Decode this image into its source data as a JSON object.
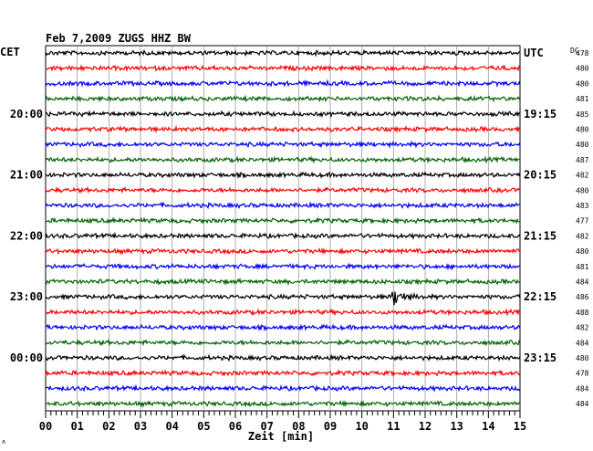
{
  "chart_data": {
    "type": "line",
    "title": "Feb 7,2009   ZUGS HHZ BW",
    "left_timezone": "CET",
    "right_timezone": "UTC",
    "dc_label": "DC",
    "xlabel": "Zeit [min]",
    "x_ticks": [
      "00",
      "01",
      "02",
      "03",
      "04",
      "05",
      "06",
      "07",
      "08",
      "09",
      "10",
      "11",
      "12",
      "13",
      "14",
      "15"
    ],
    "xlim": [
      0,
      15
    ],
    "grid": true,
    "trace_colors": [
      "#000000",
      "#ff0000",
      "#0000ff",
      "#006400"
    ],
    "left_time_labels": [
      {
        "row": 4,
        "text": "20:00"
      },
      {
        "row": 8,
        "text": "21:00"
      },
      {
        "row": 12,
        "text": "22:00"
      },
      {
        "row": 16,
        "text": "23:00"
      },
      {
        "row": 20,
        "text": "00:00"
      }
    ],
    "right_time_labels": [
      {
        "row": 0,
        "text": "UTC"
      },
      {
        "row": 4,
        "text": "19:15"
      },
      {
        "row": 8,
        "text": "20:15"
      },
      {
        "row": 12,
        "text": "21:15"
      },
      {
        "row": 16,
        "text": "22:15"
      },
      {
        "row": 20,
        "text": "23:15"
      }
    ],
    "dc_offsets": [
      "478",
      "480",
      "480",
      "481",
      "485",
      "480",
      "480",
      "487",
      "482",
      "480",
      "483",
      "477",
      "482",
      "480",
      "481",
      "484",
      "486",
      "488",
      "482",
      "484",
      "480",
      "478",
      "484",
      "484"
    ],
    "event": {
      "row": 16,
      "minute": 11.0,
      "label": "local earthquake burst"
    }
  }
}
